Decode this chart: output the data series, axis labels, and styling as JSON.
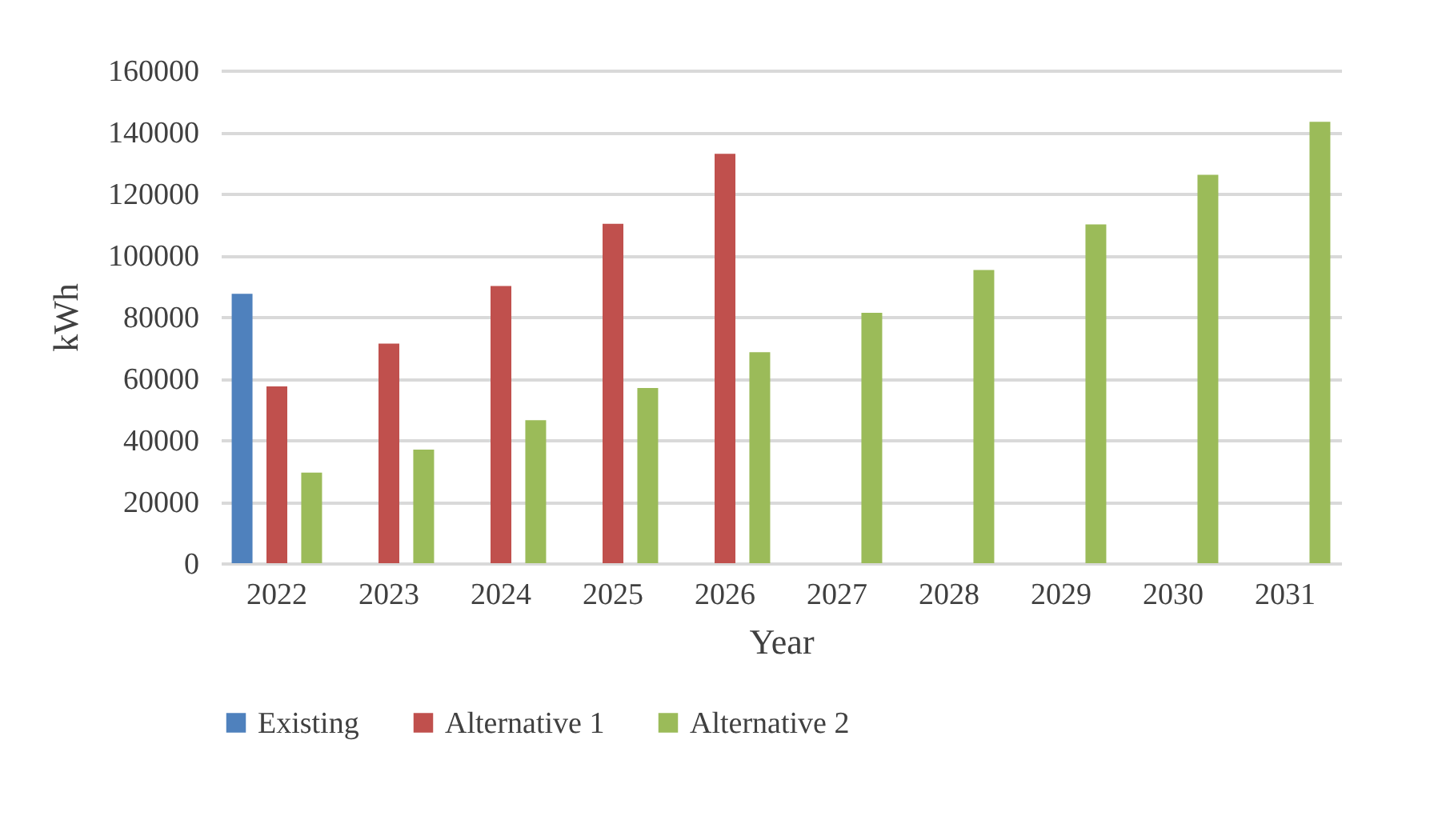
{
  "chart_data": {
    "type": "bar",
    "xlabel": "Year",
    "ylabel": "kWh",
    "categories": [
      "2022",
      "2023",
      "2024",
      "2025",
      "2026",
      "2027",
      "2028",
      "2029",
      "2030",
      "2031"
    ],
    "series": [
      {
        "name": "Existing",
        "color": "#4f81bd",
        "values": [
          87500,
          null,
          null,
          null,
          null,
          null,
          null,
          null,
          null,
          null
        ]
      },
      {
        "name": "Alternative 1",
        "color": "#c0504d",
        "values": [
          57400,
          71300,
          90000,
          110200,
          132900,
          null,
          null,
          null,
          null,
          null
        ]
      },
      {
        "name": "Alternative 2",
        "color": "#9bbb59",
        "values": [
          29400,
          36900,
          46400,
          56900,
          68500,
          81300,
          95200,
          110000,
          126100,
          143300
        ]
      }
    ],
    "ylim": [
      0,
      160000
    ],
    "yticks": [
      0,
      20000,
      40000,
      60000,
      80000,
      100000,
      120000,
      140000,
      160000
    ],
    "grid": "y",
    "legend": "bottom"
  }
}
